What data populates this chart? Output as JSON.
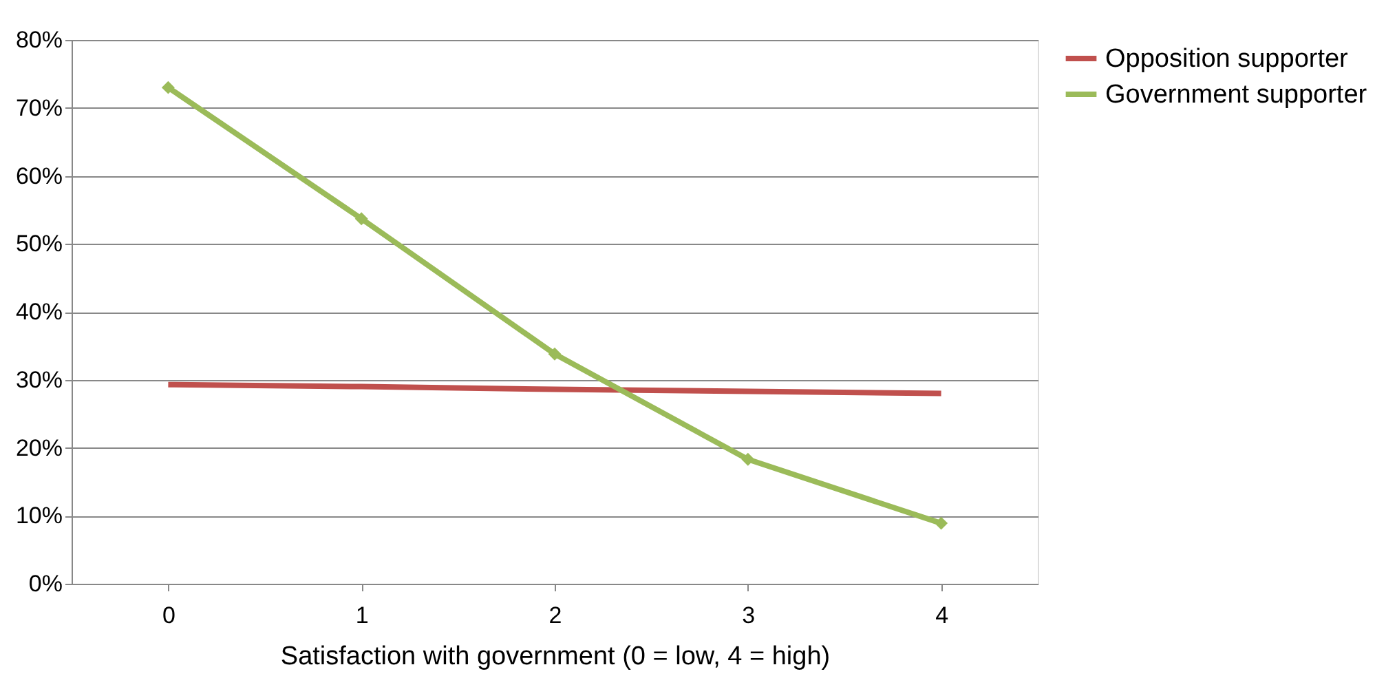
{
  "chart_data": {
    "type": "line",
    "xlabel": "Satisfaction with government (0 = low, 4 = high)",
    "categories": [
      "0",
      "1",
      "2",
      "3",
      "4"
    ],
    "series": [
      {
        "name": "Opposition supporter",
        "color": "#c0504d",
        "values": [
          29.3,
          29.0,
          28.6,
          28.3,
          28.0
        ],
        "marker": "none"
      },
      {
        "name": "Government supporter",
        "color": "#9bbb59",
        "values": [
          73.0,
          53.7,
          33.8,
          18.3,
          8.9
        ],
        "marker": "diamond"
      }
    ],
    "ylim": [
      0,
      80
    ],
    "yticks": [
      {
        "value": 0,
        "label": "0%"
      },
      {
        "value": 10,
        "label": "10%"
      },
      {
        "value": 20,
        "label": "20%"
      },
      {
        "value": 30,
        "label": "30%"
      },
      {
        "value": 40,
        "label": "40%"
      },
      {
        "value": 50,
        "label": "50%"
      },
      {
        "value": 60,
        "label": "60%"
      },
      {
        "value": 70,
        "label": "70%"
      },
      {
        "value": 80,
        "label": "80%"
      }
    ],
    "grid": "y",
    "legend": "right"
  }
}
